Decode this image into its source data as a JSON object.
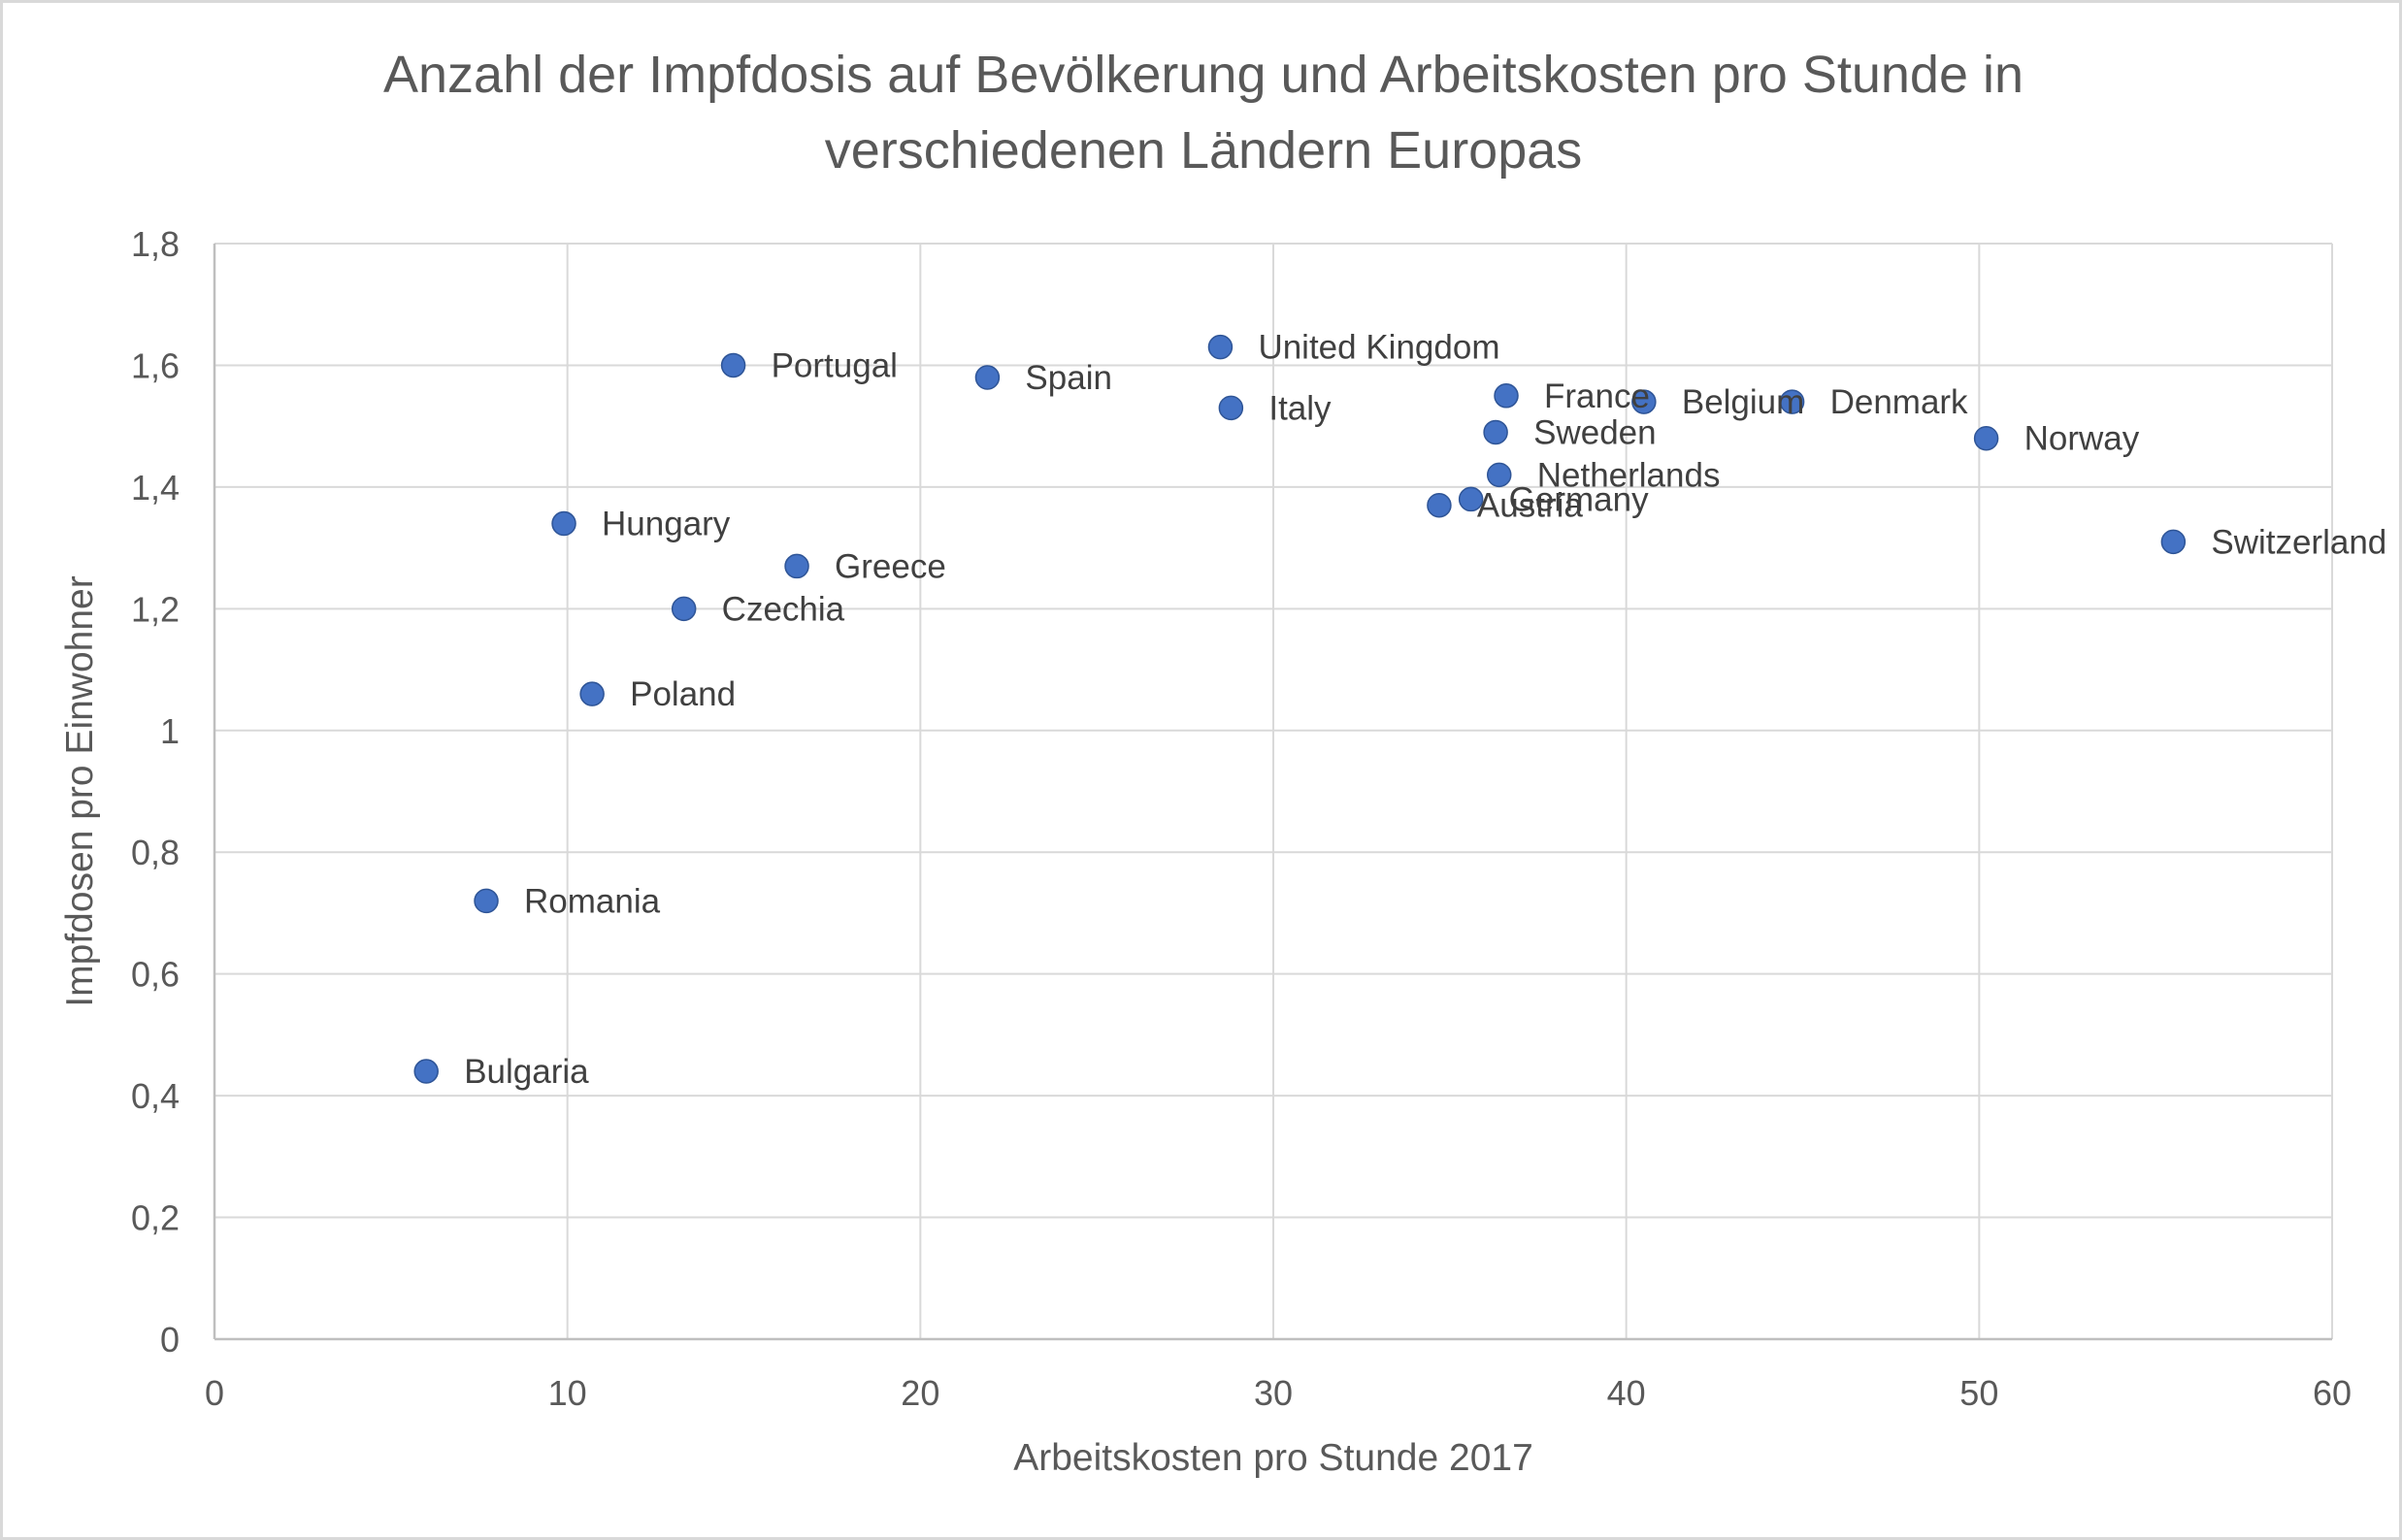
{
  "chart_data": {
    "type": "scatter",
    "title": "Anzahl der Impfdosis auf Bevölkerung und Arbeitskosten pro Stunde in verschiedenen Ländern Europas",
    "title_lines": [
      "Anzahl der Impfdosis auf Bevölkerung und Arbeitskosten pro Stunde in",
      "verschiedenen Ländern Europas"
    ],
    "xlabel": "Arbeitskosten pro Stunde 2017",
    "ylabel": "Impfdosen pro Einwohner",
    "xlim": [
      0,
      60
    ],
    "ylim": [
      0,
      1.8
    ],
    "x_ticks": [
      {
        "value": 0,
        "label": "0"
      },
      {
        "value": 10,
        "label": "10"
      },
      {
        "value": 20,
        "label": "20"
      },
      {
        "value": 30,
        "label": "30"
      },
      {
        "value": 40,
        "label": "40"
      },
      {
        "value": 50,
        "label": "50"
      },
      {
        "value": 60,
        "label": "60"
      }
    ],
    "y_ticks": [
      {
        "value": 0,
        "label": "0"
      },
      {
        "value": 0.2,
        "label": "0,2"
      },
      {
        "value": 0.4,
        "label": "0,4"
      },
      {
        "value": 0.6,
        "label": "0,6"
      },
      {
        "value": 0.8,
        "label": "0,8"
      },
      {
        "value": 1.0,
        "label": "1"
      },
      {
        "value": 1.2,
        "label": "1,2"
      },
      {
        "value": 1.4,
        "label": "1,4"
      },
      {
        "value": 1.6,
        "label": "1,6"
      },
      {
        "value": 1.8,
        "label": "1,8"
      }
    ],
    "grid": true,
    "marker_color": "#4472c4",
    "points": [
      {
        "label": "Portugal",
        "x": 14.7,
        "y": 1.6
      },
      {
        "label": "Spain",
        "x": 21.9,
        "y": 1.58
      },
      {
        "label": "United Kingdom",
        "x": 28.5,
        "y": 1.63
      },
      {
        "label": "Italy",
        "x": 28.8,
        "y": 1.53
      },
      {
        "label": "France",
        "x": 36.6,
        "y": 1.55
      },
      {
        "label": "Belgium",
        "x": 40.5,
        "y": 1.54
      },
      {
        "label": "Denmark",
        "x": 44.7,
        "y": 1.54
      },
      {
        "label": "Sweden",
        "x": 36.3,
        "y": 1.49
      },
      {
        "label": "Netherlands",
        "x": 36.4,
        "y": 1.42
      },
      {
        "label": "Germany",
        "x": 35.6,
        "y": 1.38
      },
      {
        "label": "Austria",
        "x": 34.7,
        "y": 1.37
      },
      {
        "label": "Norway",
        "x": 50.2,
        "y": 1.48
      },
      {
        "label": "Switzerland",
        "x": 55.5,
        "y": 1.31
      },
      {
        "label": "Hungary",
        "x": 9.9,
        "y": 1.34
      },
      {
        "label": "Greece",
        "x": 16.5,
        "y": 1.27
      },
      {
        "label": "Czechia",
        "x": 13.3,
        "y": 1.2
      },
      {
        "label": "Poland",
        "x": 10.7,
        "y": 1.06
      },
      {
        "label": "Romania",
        "x": 7.7,
        "y": 0.72
      },
      {
        "label": "Bulgaria",
        "x": 6.0,
        "y": 0.44
      }
    ]
  }
}
